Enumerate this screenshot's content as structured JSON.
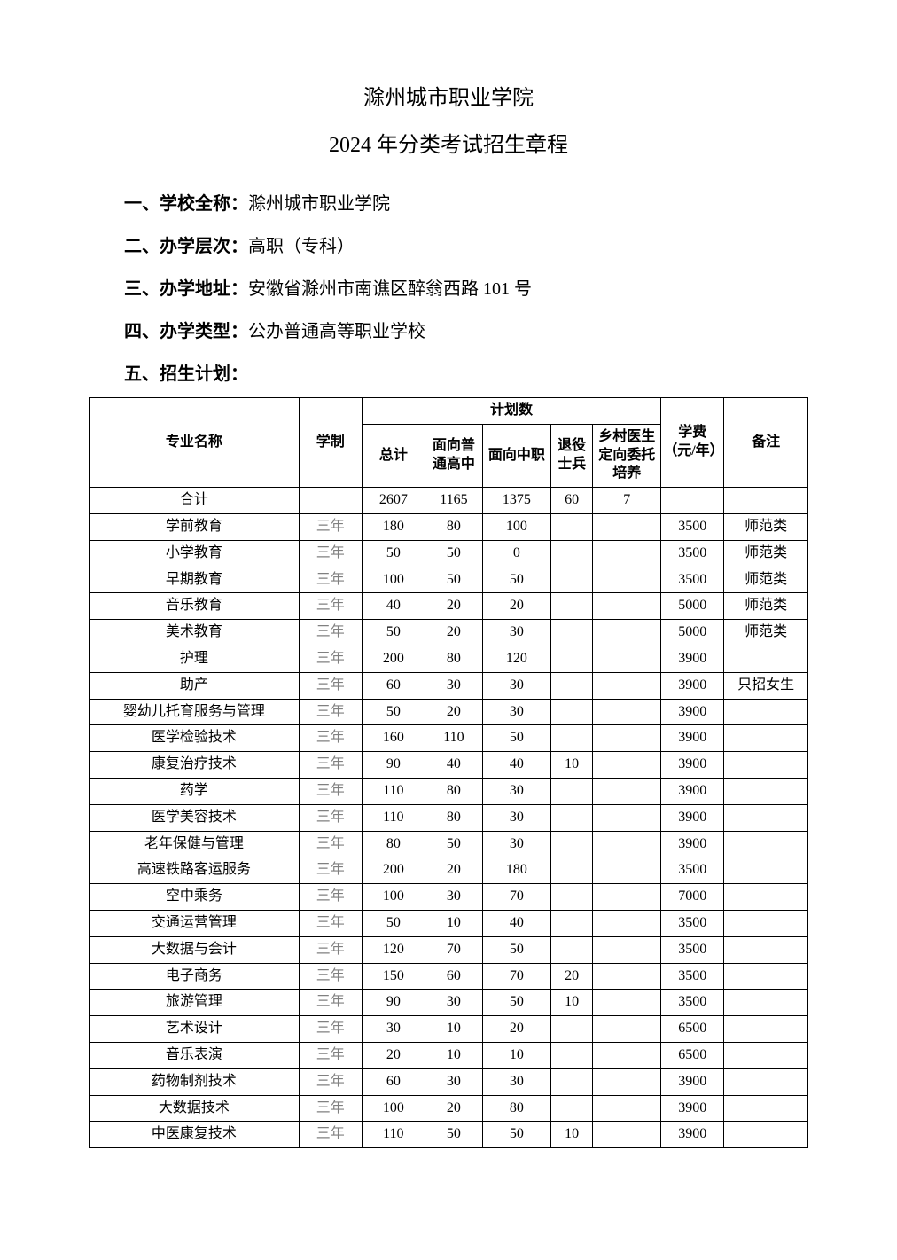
{
  "title": "滁州城市职业学院",
  "subtitle": "2024 年分类考试招生章程",
  "sections": [
    {
      "label": "一、学校全称：",
      "value": "滁州城市职业学院"
    },
    {
      "label": "二、办学层次：",
      "value": "高职（专科）"
    },
    {
      "label": "三、办学地址：",
      "value": "安徽省滁州市南谯区醉翁西路 101 号"
    },
    {
      "label": "四、办学类型：",
      "value": "公办普通高等职业学校"
    },
    {
      "label": "五、招生计划：",
      "value": ""
    }
  ],
  "table": {
    "headers": {
      "major": "专业名称",
      "duration": "学制",
      "plan_group": "计划数",
      "total": "总计",
      "gaozhong": "面向普通高中",
      "zhongzhi": "面向中职",
      "soldier": "退役士兵",
      "rural": "乡村医生定向委托培养",
      "fee": "学费（元/年）",
      "note": "备注"
    },
    "sum_row": {
      "major": "合计",
      "duration": "",
      "total": "2607",
      "gaozhong": "1165",
      "zhongzhi": "1375",
      "soldier": "60",
      "rural": "7",
      "fee": "",
      "note": ""
    },
    "rows": [
      {
        "major": "学前教育",
        "duration": "三年",
        "total": "180",
        "gaozhong": "80",
        "zhongzhi": "100",
        "soldier": "",
        "rural": "",
        "fee": "3500",
        "note": "师范类"
      },
      {
        "major": "小学教育",
        "duration": "三年",
        "total": "50",
        "gaozhong": "50",
        "zhongzhi": "0",
        "soldier": "",
        "rural": "",
        "fee": "3500",
        "note": "师范类"
      },
      {
        "major": "早期教育",
        "duration": "三年",
        "total": "100",
        "gaozhong": "50",
        "zhongzhi": "50",
        "soldier": "",
        "rural": "",
        "fee": "3500",
        "note": "师范类"
      },
      {
        "major": "音乐教育",
        "duration": "三年",
        "total": "40",
        "gaozhong": "20",
        "zhongzhi": "20",
        "soldier": "",
        "rural": "",
        "fee": "5000",
        "note": "师范类"
      },
      {
        "major": "美术教育",
        "duration": "三年",
        "total": "50",
        "gaozhong": "20",
        "zhongzhi": "30",
        "soldier": "",
        "rural": "",
        "fee": "5000",
        "note": "师范类"
      },
      {
        "major": "护理",
        "duration": "三年",
        "total": "200",
        "gaozhong": "80",
        "zhongzhi": "120",
        "soldier": "",
        "rural": "",
        "fee": "3900",
        "note": ""
      },
      {
        "major": "助产",
        "duration": "三年",
        "total": "60",
        "gaozhong": "30",
        "zhongzhi": "30",
        "soldier": "",
        "rural": "",
        "fee": "3900",
        "note": "只招女生"
      },
      {
        "major": "婴幼儿托育服务与管理",
        "duration": "三年",
        "total": "50",
        "gaozhong": "20",
        "zhongzhi": "30",
        "soldier": "",
        "rural": "",
        "fee": "3900",
        "note": ""
      },
      {
        "major": "医学检验技术",
        "duration": "三年",
        "total": "160",
        "gaozhong": "110",
        "zhongzhi": "50",
        "soldier": "",
        "rural": "",
        "fee": "3900",
        "note": ""
      },
      {
        "major": "康复治疗技术",
        "duration": "三年",
        "total": "90",
        "gaozhong": "40",
        "zhongzhi": "40",
        "soldier": "10",
        "rural": "",
        "fee": "3900",
        "note": ""
      },
      {
        "major": "药学",
        "duration": "三年",
        "total": "110",
        "gaozhong": "80",
        "zhongzhi": "30",
        "soldier": "",
        "rural": "",
        "fee": "3900",
        "note": ""
      },
      {
        "major": "医学美容技术",
        "duration": "三年",
        "total": "110",
        "gaozhong": "80",
        "zhongzhi": "30",
        "soldier": "",
        "rural": "",
        "fee": "3900",
        "note": ""
      },
      {
        "major": "老年保健与管理",
        "duration": "三年",
        "total": "80",
        "gaozhong": "50",
        "zhongzhi": "30",
        "soldier": "",
        "rural": "",
        "fee": "3900",
        "note": ""
      },
      {
        "major": "高速铁路客运服务",
        "duration": "三年",
        "total": "200",
        "gaozhong": "20",
        "zhongzhi": "180",
        "soldier": "",
        "rural": "",
        "fee": "3500",
        "note": ""
      },
      {
        "major": "空中乘务",
        "duration": "三年",
        "total": "100",
        "gaozhong": "30",
        "zhongzhi": "70",
        "soldier": "",
        "rural": "",
        "fee": "7000",
        "note": ""
      },
      {
        "major": "交通运营管理",
        "duration": "三年",
        "total": "50",
        "gaozhong": "10",
        "zhongzhi": "40",
        "soldier": "",
        "rural": "",
        "fee": "3500",
        "note": ""
      },
      {
        "major": "大数据与会计",
        "duration": "三年",
        "total": "120",
        "gaozhong": "70",
        "zhongzhi": "50",
        "soldier": "",
        "rural": "",
        "fee": "3500",
        "note": ""
      },
      {
        "major": "电子商务",
        "duration": "三年",
        "total": "150",
        "gaozhong": "60",
        "zhongzhi": "70",
        "soldier": "20",
        "rural": "",
        "fee": "3500",
        "note": ""
      },
      {
        "major": "旅游管理",
        "duration": "三年",
        "total": "90",
        "gaozhong": "30",
        "zhongzhi": "50",
        "soldier": "10",
        "rural": "",
        "fee": "3500",
        "note": ""
      },
      {
        "major": "艺术设计",
        "duration": "三年",
        "total": "30",
        "gaozhong": "10",
        "zhongzhi": "20",
        "soldier": "",
        "rural": "",
        "fee": "6500",
        "note": ""
      },
      {
        "major": "音乐表演",
        "duration": "三年",
        "total": "20",
        "gaozhong": "10",
        "zhongzhi": "10",
        "soldier": "",
        "rural": "",
        "fee": "6500",
        "note": ""
      },
      {
        "major": "药物制剂技术",
        "duration": "三年",
        "total": "60",
        "gaozhong": "30",
        "zhongzhi": "30",
        "soldier": "",
        "rural": "",
        "fee": "3900",
        "note": ""
      },
      {
        "major": "大数据技术",
        "duration": "三年",
        "total": "100",
        "gaozhong": "20",
        "zhongzhi": "80",
        "soldier": "",
        "rural": "",
        "fee": "3900",
        "note": ""
      },
      {
        "major": "中医康复技术",
        "duration": "三年",
        "total": "110",
        "gaozhong": "50",
        "zhongzhi": "50",
        "soldier": "10",
        "rural": "",
        "fee": "3900",
        "note": ""
      }
    ],
    "gray_duration_rows": [
      0,
      1,
      2,
      3,
      4,
      5,
      6,
      7,
      8,
      9,
      10,
      11,
      12,
      13,
      14,
      15,
      16,
      17,
      18,
      19,
      20,
      21,
      22,
      23
    ]
  }
}
